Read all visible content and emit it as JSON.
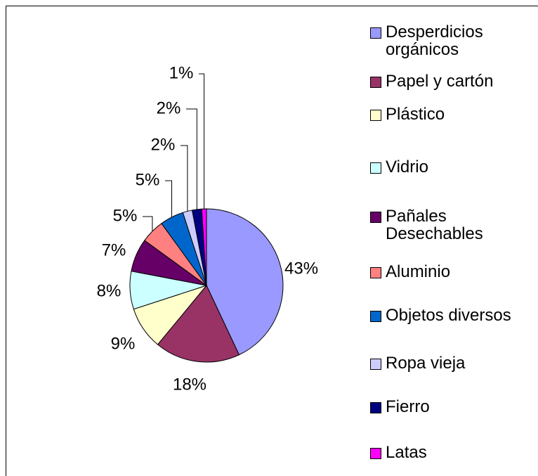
{
  "chart_data": {
    "type": "pie",
    "categories": [
      "Desperdicios orgánicos",
      "Papel y cartón",
      "Plástico",
      "Vidrio",
      "Pañales Desechables",
      "Aluminio",
      "Objetos diversos",
      "Ropa vieja",
      "Fierro",
      "Latas"
    ],
    "values": [
      43,
      18,
      9,
      8,
      7,
      5,
      5,
      2,
      2,
      1
    ],
    "value_labels": [
      "43%",
      "18%",
      "9%",
      "8%",
      "7%",
      "5%",
      "5%",
      "2%",
      "2%",
      "1%"
    ],
    "colors": [
      "#9999ff",
      "#993366",
      "#ffffcc",
      "#ccffff",
      "#660066",
      "#ff8080",
      "#0066cc",
      "#ccccff",
      "#000080",
      "#ff00ff"
    ],
    "legend": "right"
  }
}
